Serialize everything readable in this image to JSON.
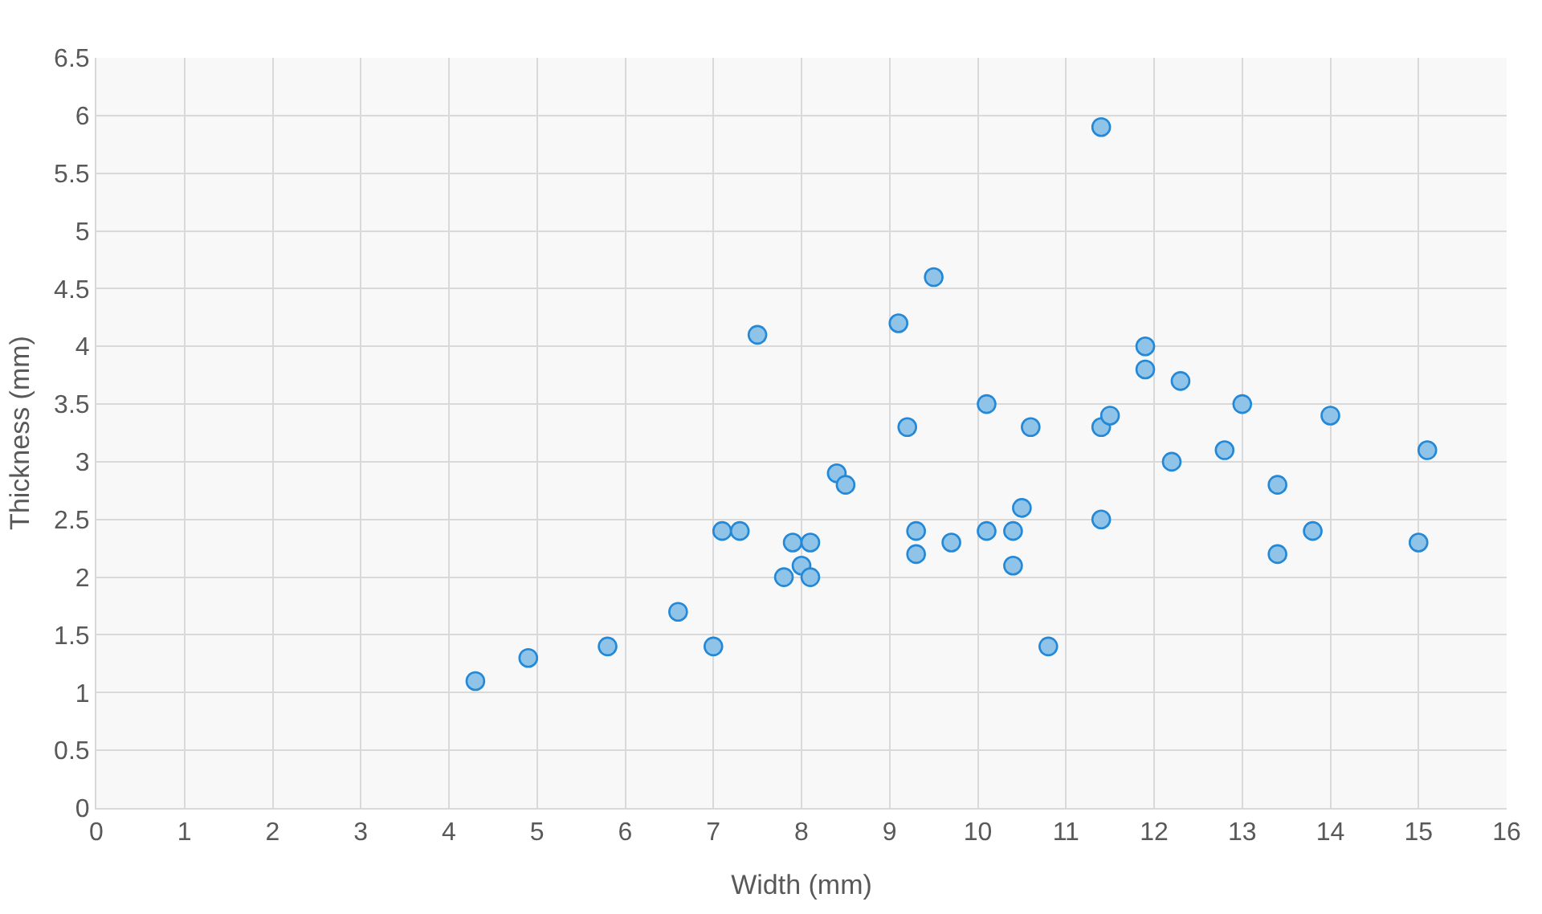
{
  "chart_data": {
    "type": "scatter",
    "xlabel": "Width (mm)",
    "ylabel": "Thickness (mm)",
    "series": [
      {
        "color": "#8fc3e8",
        "x": [
          4.3,
          4.9,
          5.8,
          6.6,
          7.0,
          7.1,
          7.3,
          7.5,
          7.8,
          7.9,
          8.0,
          8.1,
          8.1,
          8.4,
          8.5,
          9.1,
          9.2,
          9.3,
          9.3,
          9.5,
          9.7,
          10.1,
          10.1,
          10.4,
          10.4,
          10.5,
          10.6,
          10.8,
          11.4,
          11.4,
          11.4,
          11.5,
          11.9,
          11.9,
          12.2,
          12.3,
          12.8,
          13.0,
          13.4,
          13.4,
          13.8,
          14.0,
          15.0,
          15.1
        ],
        "values": [
          1.1,
          1.3,
          1.4,
          1.7,
          1.4,
          2.4,
          2.4,
          4.1,
          2.0,
          2.3,
          2.1,
          2.3,
          2.0,
          2.9,
          2.8,
          4.2,
          3.3,
          2.4,
          2.2,
          4.6,
          2.3,
          3.5,
          2.4,
          2.4,
          2.1,
          2.6,
          3.3,
          1.4,
          5.9,
          3.3,
          2.5,
          3.4,
          4.0,
          3.8,
          3.0,
          3.7,
          3.1,
          3.5,
          2.8,
          2.2,
          2.4,
          3.4,
          2.3,
          3.1
        ]
      }
    ],
    "xlim": [
      0,
      16
    ],
    "xticks": [
      0,
      1,
      2,
      3,
      4,
      5,
      6,
      7,
      8,
      9,
      10,
      11,
      12,
      13,
      14,
      15,
      16
    ],
    "ylim": [
      0,
      6.5
    ],
    "yticks": [
      0,
      0.5,
      1,
      1.5,
      2,
      2.5,
      3,
      3.5,
      4,
      4.5,
      5,
      5.5,
      6,
      6.5
    ],
    "grid": true,
    "marker": "circle"
  }
}
